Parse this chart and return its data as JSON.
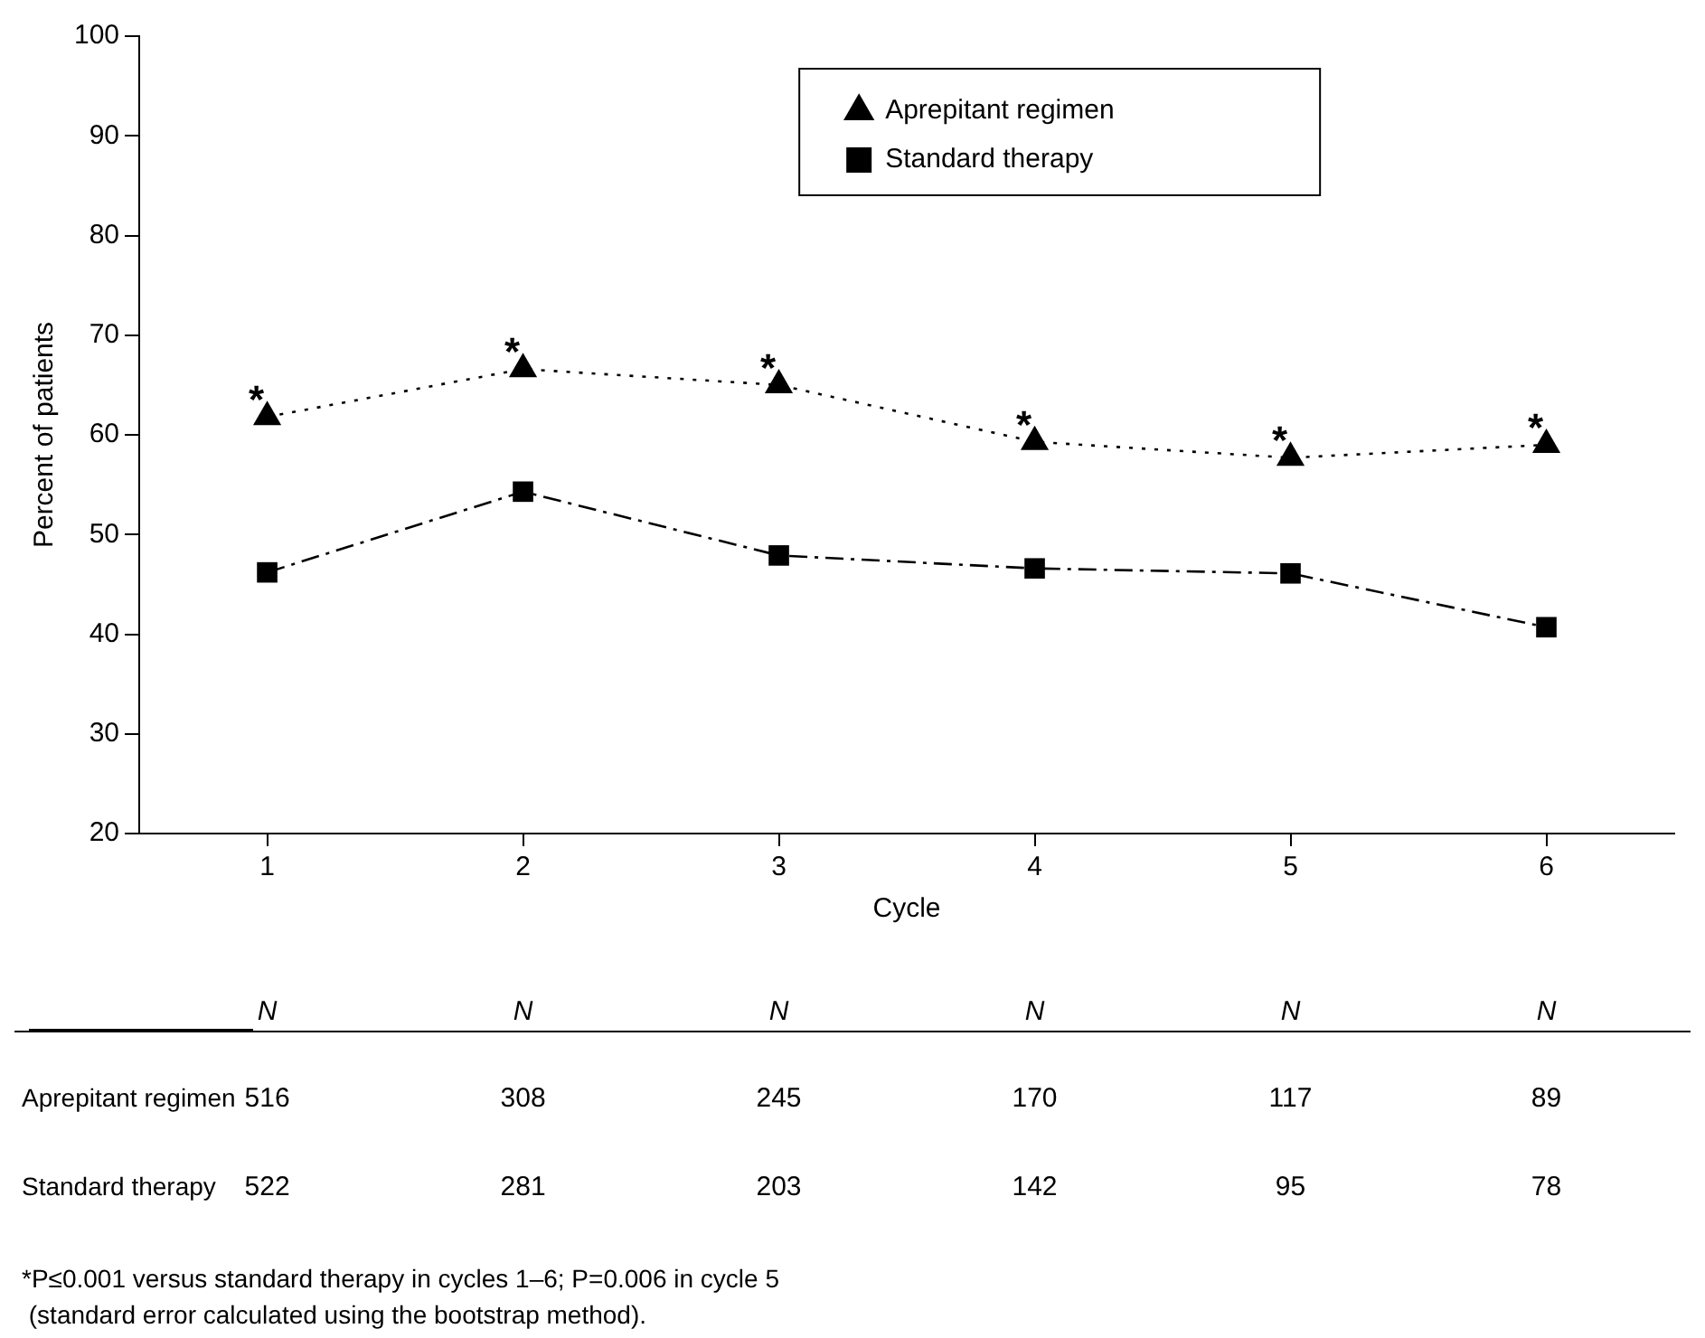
{
  "chart_data": {
    "type": "line",
    "xlabel": "Cycle",
    "ylabel": "Percent of patients",
    "categories": [
      "1",
      "2",
      "3",
      "4",
      "5",
      "6"
    ],
    "ylim": [
      20,
      100
    ],
    "yticks": [
      20,
      30,
      40,
      50,
      60,
      70,
      80,
      90,
      100
    ],
    "grid": false,
    "legend": "top right",
    "series": [
      {
        "name": "Aprepitant regimen",
        "color": "#000000",
        "marker": "triangle",
        "line_style": "dotted",
        "values": [
          61.8,
          66.6,
          65.0,
          59.3,
          57.7,
          59.0
        ]
      },
      {
        "name": "Standard therapy",
        "color": "#000000",
        "marker": "square",
        "line_style": "dashed",
        "values": [
          46.2,
          54.3,
          47.9,
          46.6,
          46.1,
          40.7
        ]
      }
    ],
    "annotations": [
      {
        "text": "*",
        "x": "1",
        "y": 61.8
      },
      {
        "text": "*",
        "x": "2",
        "y": 66.6
      },
      {
        "text": "*",
        "x": "3",
        "y": 65.0
      },
      {
        "text": "*",
        "x": "4",
        "y": 59.3
      },
      {
        "text": "*",
        "x": "5",
        "y": 57.7
      },
      {
        "text": "*",
        "x": "6",
        "y": 59.0
      },
      "N",
      "N",
      "N",
      "N",
      "N",
      "N",
      "516",
      "308",
      "245",
      "170",
      "117",
      "89",
      "522",
      "281",
      "203",
      "142",
      "95",
      "78",
      "*P≤0.001 versus standard therapy in cycles 1–6; P=0.006 in cycle 5",
      " (standard error calculated using the bootstrap method)."
    ]
  }
}
